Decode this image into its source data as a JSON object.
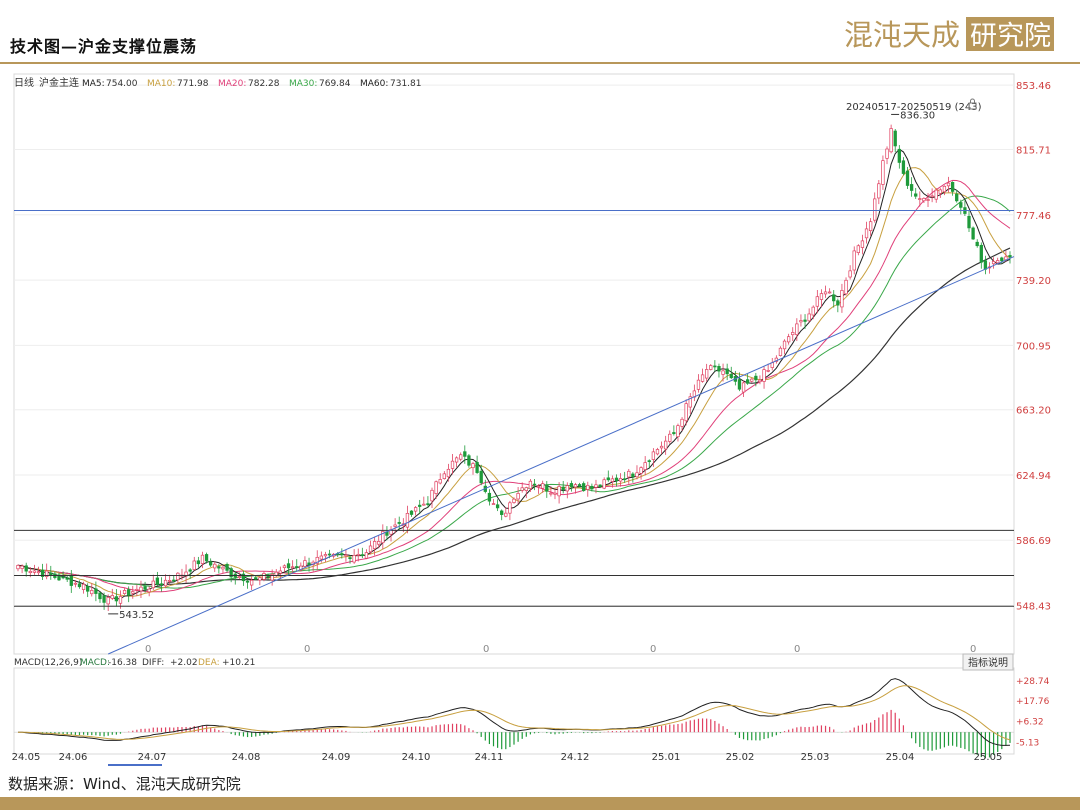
{
  "page": {
    "title": "技术图—沪金支撑位震荡",
    "source_note": "数据来源：Wind、混沌天成研究院",
    "logo_text": "混沌天成研究院",
    "accent_color": "#b8975a"
  },
  "chart_data": {
    "type": "candlestick",
    "period_label": "日线",
    "instrument": "沪金主连",
    "ma_legend": [
      {
        "name": "MA5",
        "value": "754.00",
        "color": "#222222"
      },
      {
        "name": "MA10",
        "value": "771.98",
        "color": "#c8a040"
      },
      {
        "name": "MA20",
        "value": "782.28",
        "color": "#e0407a"
      },
      {
        "name": "MA30",
        "value": "769.84",
        "color": "#3aa84a"
      },
      {
        "name": "MA60",
        "value": "731.81",
        "color": "#222222"
      }
    ],
    "range_label": "20240517-20250519 (243)",
    "ylim": [
      520,
      860
    ],
    "y_ticks": [
      548.43,
      586.69,
      624.94,
      663.2,
      700.95,
      739.2,
      777.46,
      815.71,
      853.46
    ],
    "x_tick_labels": [
      "24.05",
      "24.06",
      "24.07",
      "24.08",
      "24.09",
      "24.10",
      "24.11",
      "24.12",
      "25.01",
      "25.02",
      "25.03",
      "25.04",
      "25.05"
    ],
    "volume_zero_marks": [
      "0",
      "0",
      "0",
      "0",
      "0",
      "0"
    ],
    "high_label": "836.30",
    "low_label": "543.52",
    "support_lines": [
      592.5,
      566.0,
      548.0
    ],
    "resistance_line": 780.0,
    "trendline": {
      "start_value": 520,
      "end_value": 753
    },
    "key_points": [
      {
        "x": 0,
        "y": 572
      },
      {
        "x": 8,
        "y": 566
      },
      {
        "x": 16,
        "y": 560
      },
      {
        "x": 22,
        "y": 551
      },
      {
        "x": 28,
        "y": 557
      },
      {
        "x": 34,
        "y": 561
      },
      {
        "x": 40,
        "y": 567
      },
      {
        "x": 45,
        "y": 576
      },
      {
        "x": 52,
        "y": 567
      },
      {
        "x": 58,
        "y": 563
      },
      {
        "x": 65,
        "y": 570
      },
      {
        "x": 72,
        "y": 575
      },
      {
        "x": 78,
        "y": 577
      },
      {
        "x": 85,
        "y": 580
      },
      {
        "x": 90,
        "y": 592
      },
      {
        "x": 95,
        "y": 600
      },
      {
        "x": 100,
        "y": 610
      },
      {
        "x": 104,
        "y": 628
      },
      {
        "x": 108,
        "y": 636
      },
      {
        "x": 112,
        "y": 628
      },
      {
        "x": 115,
        "y": 612
      },
      {
        "x": 118,
        "y": 600
      },
      {
        "x": 121,
        "y": 613
      },
      {
        "x": 125,
        "y": 622
      },
      {
        "x": 130,
        "y": 616
      },
      {
        "x": 135,
        "y": 620
      },
      {
        "x": 140,
        "y": 617
      },
      {
        "x": 145,
        "y": 622
      },
      {
        "x": 150,
        "y": 626
      },
      {
        "x": 155,
        "y": 638
      },
      {
        "x": 160,
        "y": 649
      },
      {
        "x": 164,
        "y": 670
      },
      {
        "x": 168,
        "y": 687
      },
      {
        "x": 172,
        "y": 686
      },
      {
        "x": 176,
        "y": 675
      },
      {
        "x": 180,
        "y": 681
      },
      {
        "x": 183,
        "y": 686
      },
      {
        "x": 188,
        "y": 706
      },
      {
        "x": 193,
        "y": 720
      },
      {
        "x": 197,
        "y": 734
      },
      {
        "x": 200,
        "y": 726
      },
      {
        "x": 204,
        "y": 754
      },
      {
        "x": 208,
        "y": 775
      },
      {
        "x": 211,
        "y": 808
      },
      {
        "x": 213,
        "y": 826
      },
      {
        "x": 216,
        "y": 800
      },
      {
        "x": 220,
        "y": 785
      },
      {
        "x": 224,
        "y": 792
      },
      {
        "x": 227,
        "y": 796
      },
      {
        "x": 230,
        "y": 784
      },
      {
        "x": 233,
        "y": 763
      },
      {
        "x": 236,
        "y": 746
      },
      {
        "x": 239,
        "y": 753
      },
      {
        "x": 242,
        "y": 751
      }
    ],
    "macd": {
      "label": "MACD(12,26,9)",
      "macd_label": "MACD:",
      "macd_value": "-16.38",
      "diff_label": "DIFF:",
      "diff_value": "+2.02",
      "dea_label": "DEA:",
      "dea_value": "+10.21",
      "button_label": "指标说明",
      "ylim": [
        -12,
        32
      ],
      "y_ticks": [
        "+28.74",
        "+17.76",
        "+6.32",
        "-5.13"
      ],
      "y_tick_values": [
        28.74,
        17.76,
        6.32,
        -5.13
      ]
    }
  }
}
